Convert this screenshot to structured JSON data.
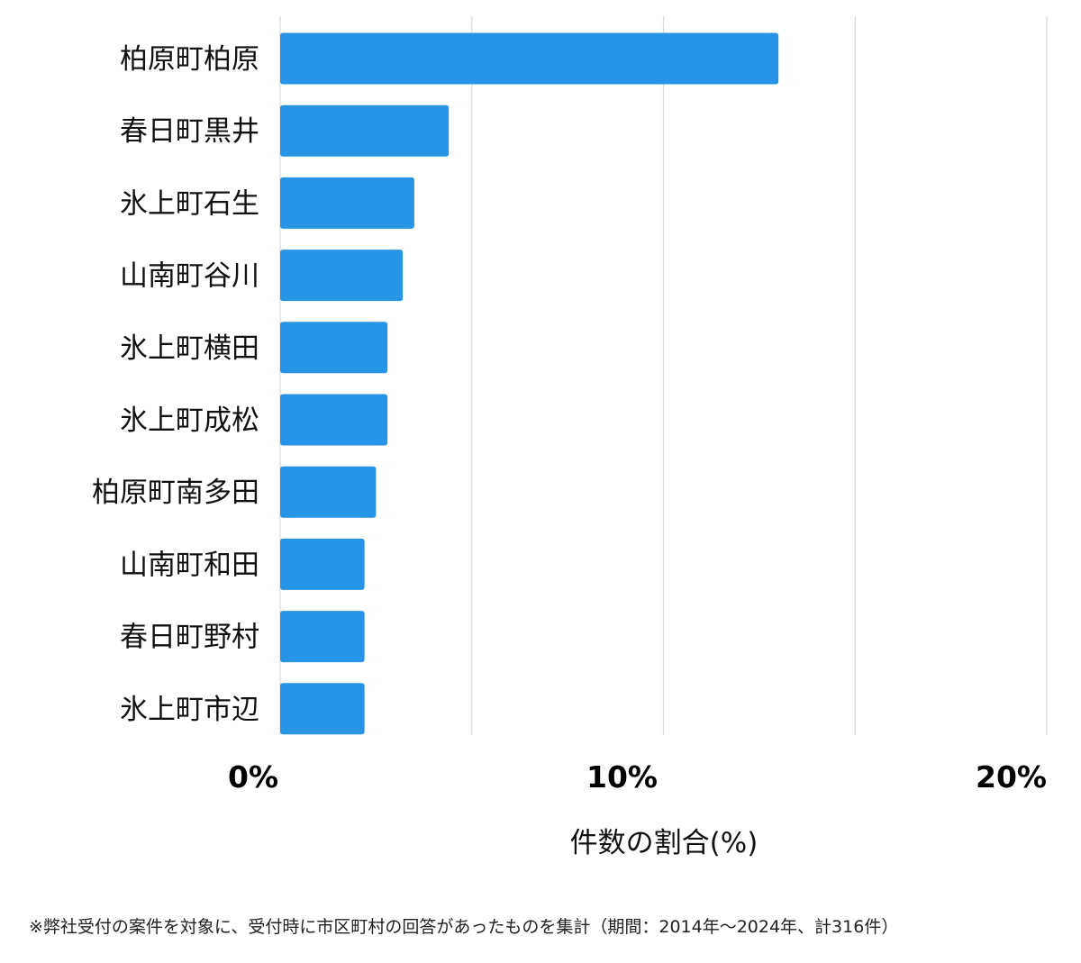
{
  "chart_data": {
    "type": "bar",
    "orientation": "horizontal",
    "categories": [
      "柏原町柏原",
      "春日町黒井",
      "氷上町石生",
      "山南町谷川",
      "氷上町横田",
      "氷上町成松",
      "柏原町南多田",
      "山南町和田",
      "春日町野村",
      "氷上町市辺"
    ],
    "values": [
      13.0,
      4.4,
      3.5,
      3.2,
      2.8,
      2.8,
      2.5,
      2.2,
      2.2,
      2.2
    ],
    "xlim": [
      0,
      20
    ],
    "xticks": [
      0,
      5,
      10,
      15,
      20
    ],
    "xtick_labels": [
      {
        "value": 0,
        "label": "0%"
      },
      {
        "value": 10,
        "label": "10%"
      },
      {
        "value": 20,
        "label": "20%"
      }
    ],
    "xlabel": "件数の割合(%)",
    "ylabel": "",
    "title": "",
    "grid": "vertical",
    "bar_color": "#2794e6",
    "grid_color": "#d9d9d9"
  },
  "footnote": "※弊社受付の案件を対象に、受付時に市区町村の回答があったものを集計（期間：2014年～2024年、計316件）"
}
